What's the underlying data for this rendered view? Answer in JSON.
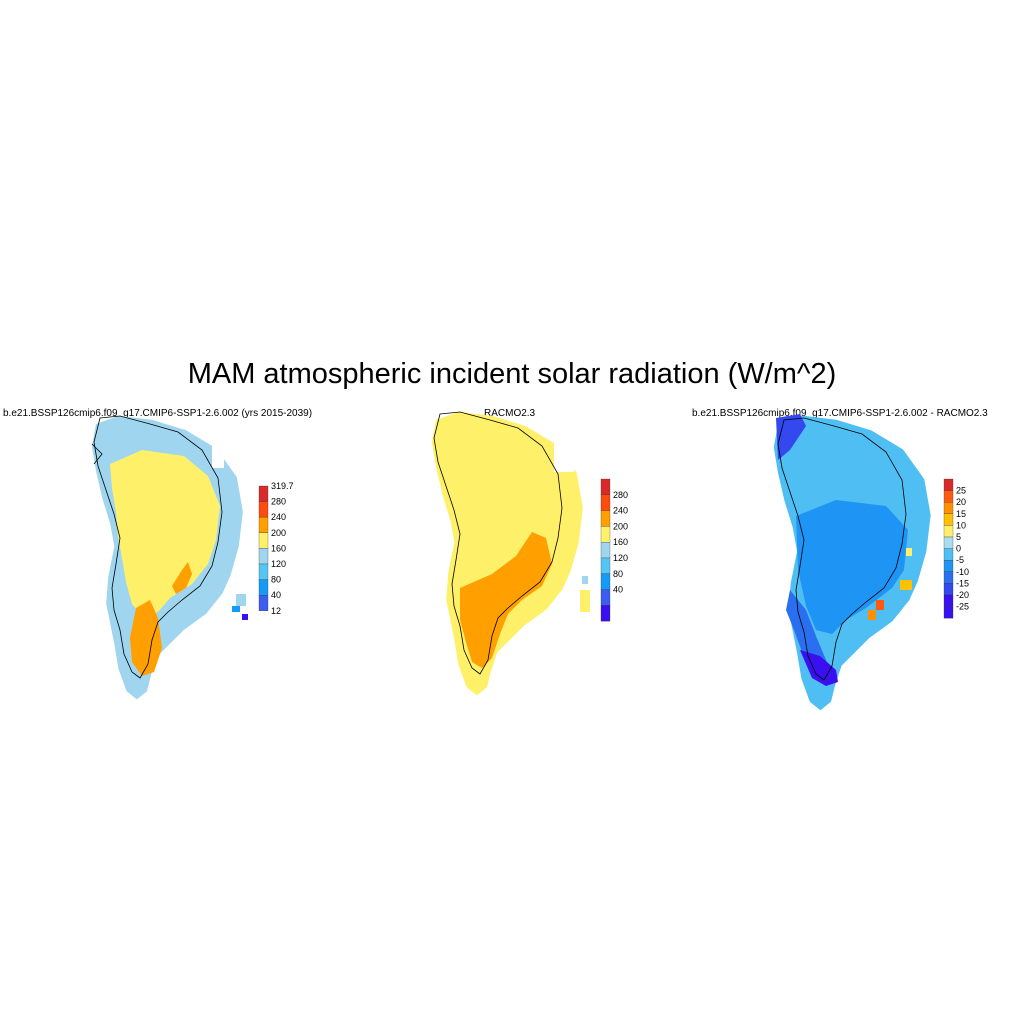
{
  "title": "MAM atmospheric incident solar radiation (W/m^2)",
  "colors": {
    "c12": "#3a10f0",
    "c40": "#3d5cf0",
    "c80": "#159bf6",
    "c120": "#55c6f2",
    "c160": "#9fd5ee",
    "c200": "#fff06a",
    "c240": "#ff9f00",
    "c280": "#ff4a10",
    "c319": "#d92a2a",
    "d_m25": "#3a10f0",
    "d_m20": "#3348ee",
    "d_m15": "#2a6ff0",
    "d_m10": "#1e94f4",
    "d_m5": "#4fbff3",
    "d_0": "#a9dcef",
    "d_5": "#fff06a",
    "d_10": "#ffc000",
    "d_15": "#ff9000",
    "d_20": "#ff5a10",
    "d_25": "#d92a2a",
    "coast": "#000000"
  },
  "panels": [
    {
      "title": "b.e21.BSSP126cmip6.f09_g17.CMIP6-SSP1-2.6.002 (yrs 2015-2039)",
      "colorbar": [
        "319.7",
        "280",
        "240",
        "200",
        "160",
        "120",
        "80",
        "40",
        "12"
      ]
    },
    {
      "title": "RACMO2.3",
      "colorbar": [
        "280",
        "240",
        "200",
        "160",
        "120",
        "80",
        "40"
      ]
    },
    {
      "title": "b.e21.BSSP126cmip6.f09_g17.CMIP6-SSP1-2.6.002 - RACMO2.3",
      "colorbar": [
        "25",
        "20",
        "15",
        "10",
        "5",
        "0",
        "-5",
        "-10",
        "-15",
        "-20",
        "-25"
      ]
    }
  ]
}
